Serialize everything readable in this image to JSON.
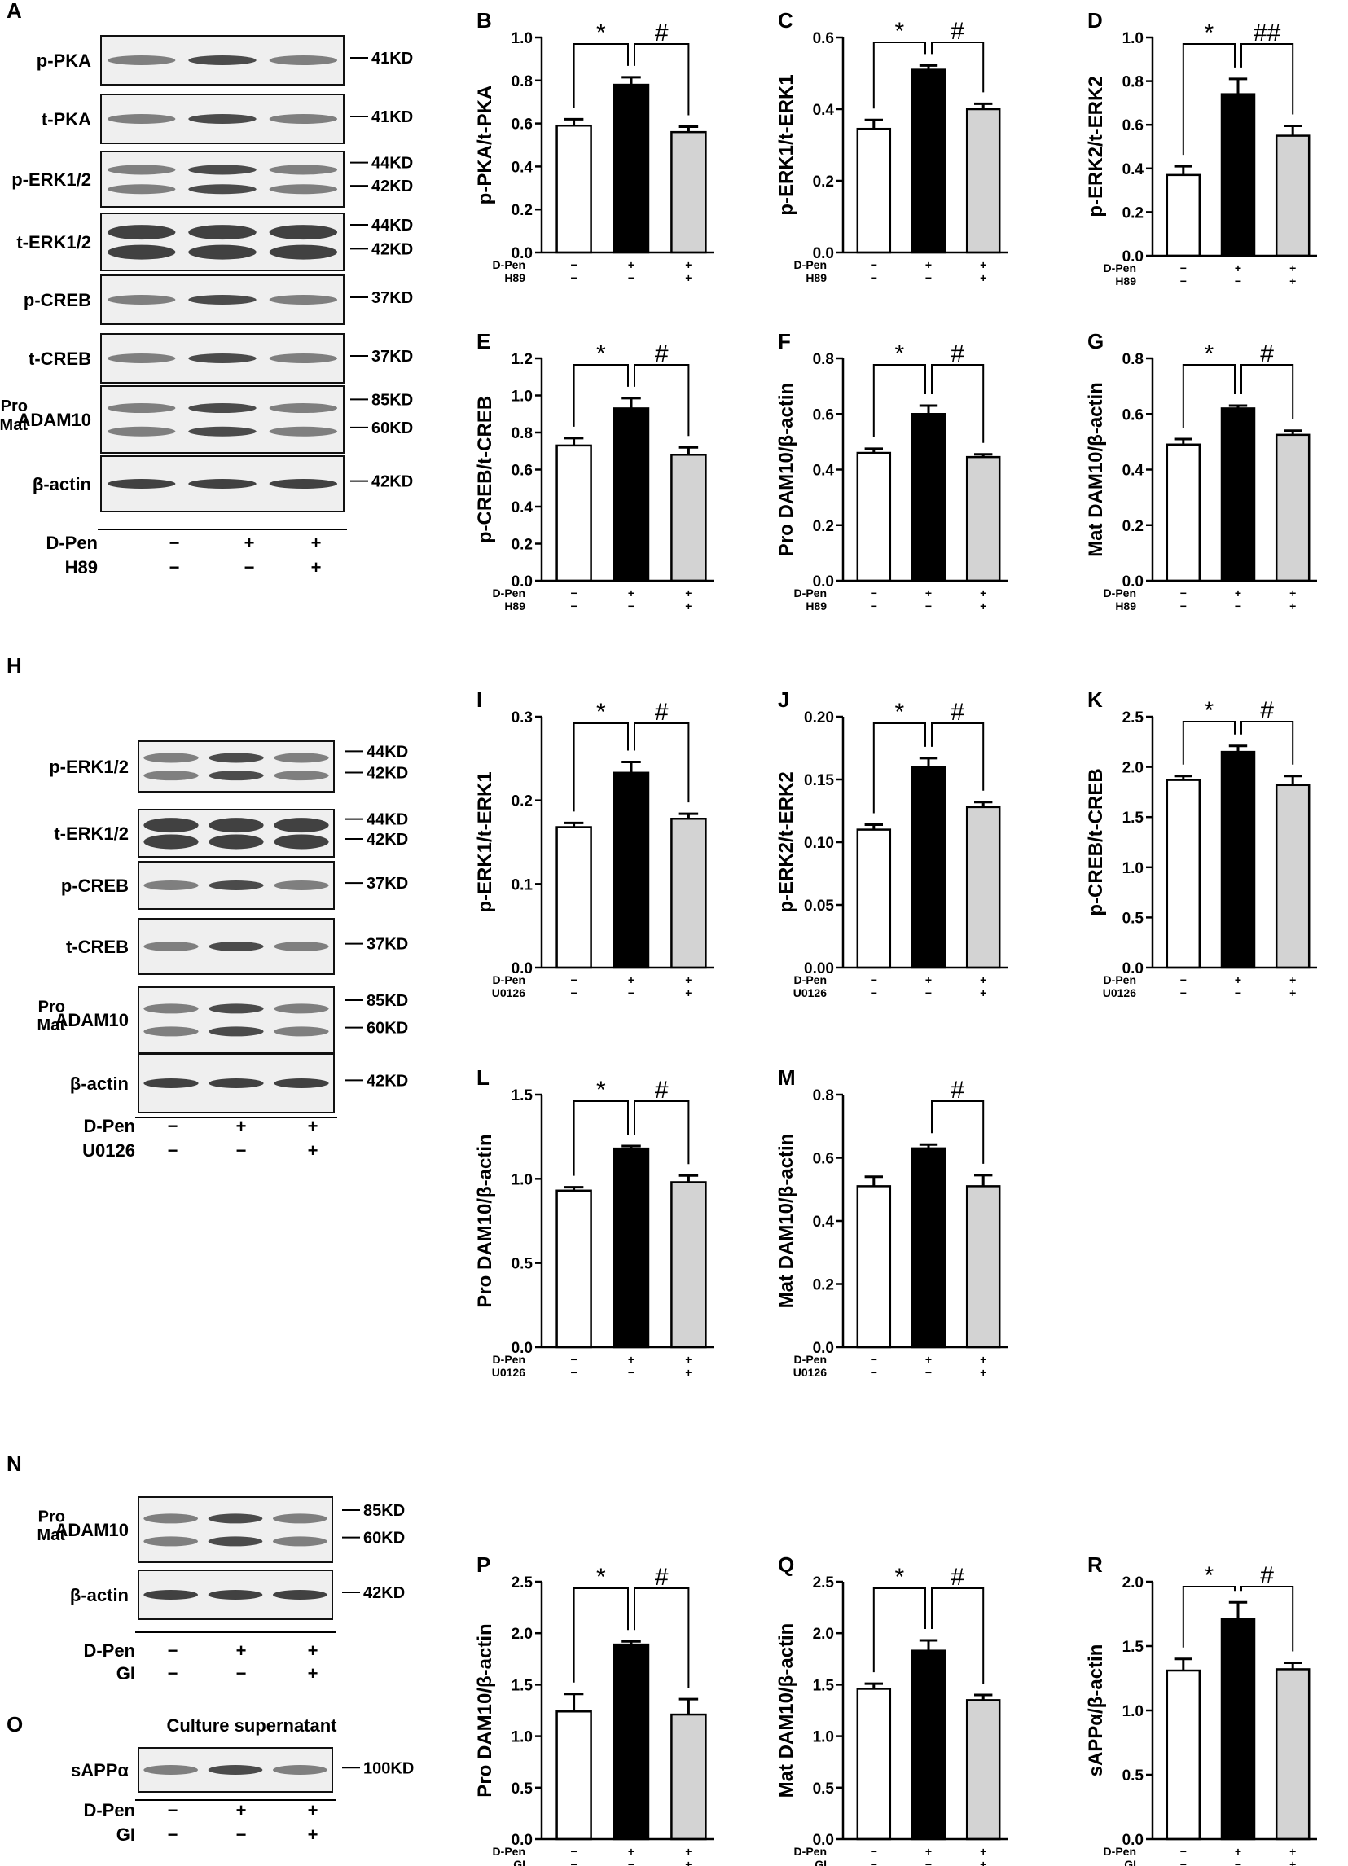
{
  "condition_labels": {
    "dpen": "D-Pen",
    "h89": "H89",
    "u0126": "U0126",
    "gi": "GI",
    "minus": "−",
    "plus": "+"
  },
  "blots": {
    "A": {
      "letter": "A",
      "rows": [
        {
          "name": "p-PKA",
          "kd": [
            "41KD"
          ]
        },
        {
          "name": "t-PKA",
          "kd": [
            "41KD"
          ]
        },
        {
          "name": "p-ERK1/2",
          "kd": [
            "44KD",
            "42KD"
          ]
        },
        {
          "name": "t-ERK1/2",
          "kd": [
            "44KD",
            "42KD"
          ]
        },
        {
          "name": "p-CREB",
          "kd": [
            "37KD"
          ]
        },
        {
          "name": "t-CREB",
          "kd": [
            "37KD"
          ]
        },
        {
          "name": "ADAM10",
          "prefix": [
            "Pro",
            "Mat"
          ],
          "kd": [
            "85KD",
            "60KD"
          ]
        },
        {
          "name": "β-actin",
          "kd": [
            "42KD"
          ]
        }
      ],
      "conditions": [
        {
          "label": "D-Pen",
          "signs": [
            "−",
            "+",
            "+"
          ]
        },
        {
          "label": "H89",
          "signs": [
            "−",
            "−",
            "+"
          ]
        }
      ]
    },
    "H": {
      "letter": "H",
      "rows": [
        {
          "name": "p-ERK1/2",
          "kd": [
            "44KD",
            "42KD"
          ]
        },
        {
          "name": "t-ERK1/2",
          "kd": [
            "44KD",
            "42KD"
          ]
        },
        {
          "name": "p-CREB",
          "kd": [
            "37KD"
          ]
        },
        {
          "name": "t-CREB",
          "kd": [
            "37KD"
          ]
        },
        {
          "name": "ADAM10",
          "prefix": [
            "Pro",
            "Mat"
          ],
          "kd": [
            "85KD",
            "60KD"
          ]
        },
        {
          "name": "β-actin",
          "kd": [
            "42KD"
          ]
        }
      ],
      "conditions": [
        {
          "label": "D-Pen",
          "signs": [
            "−",
            "+",
            "+"
          ]
        },
        {
          "label": "U0126",
          "signs": [
            "−",
            "−",
            "+"
          ]
        }
      ]
    },
    "N": {
      "letter": "N",
      "rows": [
        {
          "name": "ADAM10",
          "prefix": [
            "Pro",
            "Mat"
          ],
          "kd": [
            "85KD",
            "60KD"
          ]
        },
        {
          "name": "β-actin",
          "kd": [
            "42KD"
          ]
        }
      ],
      "conditions": [
        {
          "label": "D-Pen",
          "signs": [
            "−",
            "+",
            "+"
          ]
        },
        {
          "label": "GI",
          "signs": [
            "−",
            "−",
            "+"
          ]
        }
      ]
    },
    "O": {
      "letter": "O",
      "title": "Culture supernatant",
      "rows": [
        {
          "name": "sAPPα",
          "kd": [
            "100KD"
          ]
        }
      ],
      "conditions": [
        {
          "label": "D-Pen",
          "signs": [
            "−",
            "+",
            "+"
          ]
        },
        {
          "label": "GI",
          "signs": [
            "−",
            "−",
            "+"
          ]
        }
      ]
    }
  },
  "chart_data": [
    {
      "panel": "B",
      "type": "bar",
      "ylabel": "p-PKA/t-PKA",
      "ylim": [
        0,
        1.0
      ],
      "yticks": [
        "0.0",
        "0.2",
        "0.4",
        "0.6",
        "0.8",
        "1.0"
      ],
      "values": [
        0.59,
        0.78,
        0.56
      ],
      "errors": [
        0.03,
        0.035,
        0.025
      ],
      "colors": [
        "#ffffff",
        "#000000",
        "#d3d3d3"
      ],
      "sig1": "*",
      "sig2": "#",
      "inhibitor": "H89"
    },
    {
      "panel": "C",
      "type": "bar",
      "ylabel": "p-ERK1/t-ERK1",
      "ylim": [
        0,
        0.6
      ],
      "yticks": [
        "0.0",
        "0.2",
        "0.4",
        "0.6"
      ],
      "values": [
        0.345,
        0.51,
        0.4
      ],
      "errors": [
        0.025,
        0.012,
        0.015
      ],
      "colors": [
        "#ffffff",
        "#000000",
        "#d3d3d3"
      ],
      "sig1": "*",
      "sig2": "#",
      "inhibitor": "H89"
    },
    {
      "panel": "D",
      "type": "bar",
      "ylabel": "p-ERK2/t-ERK2",
      "ylim": [
        0,
        1.0
      ],
      "yticks": [
        "0.0",
        "0.2",
        "0.4",
        "0.6",
        "0.8",
        "1.0"
      ],
      "values": [
        0.37,
        0.74,
        0.55
      ],
      "errors": [
        0.04,
        0.07,
        0.045
      ],
      "colors": [
        "#ffffff",
        "#000000",
        "#d3d3d3"
      ],
      "sig1": "*",
      "sig2": "##",
      "inhibitor": "H89"
    },
    {
      "panel": "E",
      "type": "bar",
      "ylabel": "p-CREB/t-CREB",
      "ylim": [
        0,
        1.2
      ],
      "yticks": [
        "0.0",
        "0.2",
        "0.4",
        "0.6",
        "0.8",
        "1.0",
        "1.2"
      ],
      "values": [
        0.73,
        0.93,
        0.68
      ],
      "errors": [
        0.04,
        0.055,
        0.04
      ],
      "colors": [
        "#ffffff",
        "#000000",
        "#d3d3d3"
      ],
      "sig1": "*",
      "sig2": "#",
      "inhibitor": "H89"
    },
    {
      "panel": "F",
      "type": "bar",
      "ylabel": "Pro DAM10/β-actin",
      "ylim": [
        0,
        0.8
      ],
      "yticks": [
        "0.0",
        "0.2",
        "0.4",
        "0.6",
        "0.8"
      ],
      "values": [
        0.46,
        0.6,
        0.445
      ],
      "errors": [
        0.015,
        0.03,
        0.01
      ],
      "colors": [
        "#ffffff",
        "#000000",
        "#d3d3d3"
      ],
      "sig1": "*",
      "sig2": "#",
      "inhibitor": "H89"
    },
    {
      "panel": "G",
      "type": "bar",
      "ylabel": "Mat DAM10/β-actin",
      "ylim": [
        0,
        0.8
      ],
      "yticks": [
        "0.0",
        "0.2",
        "0.4",
        "0.6",
        "0.8"
      ],
      "values": [
        0.49,
        0.62,
        0.525
      ],
      "errors": [
        0.02,
        0.01,
        0.015
      ],
      "colors": [
        "#ffffff",
        "#000000",
        "#d3d3d3"
      ],
      "sig1": "*",
      "sig2": "#",
      "inhibitor": "H89"
    },
    {
      "panel": "I",
      "type": "bar",
      "ylabel": "p-ERK1/t-ERK1",
      "ylim": [
        0,
        0.3
      ],
      "yticks": [
        "0.0",
        "0.1",
        "0.2",
        "0.3"
      ],
      "values": [
        0.168,
        0.233,
        0.178
      ],
      "errors": [
        0.005,
        0.013,
        0.006
      ],
      "colors": [
        "#ffffff",
        "#000000",
        "#d3d3d3"
      ],
      "sig1": "*",
      "sig2": "#",
      "inhibitor": "U0126"
    },
    {
      "panel": "J",
      "type": "bar",
      "ylabel": "p-ERK2/t-ERK2",
      "ylim": [
        0,
        0.2
      ],
      "yticks": [
        "0.00",
        "0.05",
        "0.10",
        "0.15",
        "0.20"
      ],
      "values": [
        0.11,
        0.16,
        0.128
      ],
      "errors": [
        0.004,
        0.007,
        0.004
      ],
      "colors": [
        "#ffffff",
        "#000000",
        "#d3d3d3"
      ],
      "sig1": "*",
      "sig2": "#",
      "inhibitor": "U0126"
    },
    {
      "panel": "K",
      "type": "bar",
      "ylabel": "p-CREB/t-CREB",
      "ylim": [
        0,
        2.5
      ],
      "yticks": [
        "0.0",
        "0.5",
        "1.0",
        "1.5",
        "2.0",
        "2.5"
      ],
      "values": [
        1.87,
        2.15,
        1.82
      ],
      "errors": [
        0.04,
        0.06,
        0.09
      ],
      "colors": [
        "#ffffff",
        "#000000",
        "#d3d3d3"
      ],
      "sig1": "*",
      "sig2": "#",
      "inhibitor": "U0126"
    },
    {
      "panel": "L",
      "type": "bar",
      "ylabel": "Pro DAM10/β-actin",
      "ylim": [
        0,
        1.5
      ],
      "yticks": [
        "0.0",
        "0.5",
        "1.0",
        "1.5"
      ],
      "values": [
        0.93,
        1.18,
        0.98
      ],
      "errors": [
        0.02,
        0.015,
        0.04
      ],
      "colors": [
        "#ffffff",
        "#000000",
        "#d3d3d3"
      ],
      "sig1": "*",
      "sig2": "#",
      "inhibitor": "U0126"
    },
    {
      "panel": "M",
      "type": "bar",
      "ylabel": "Mat DAM10/β-actin",
      "ylim": [
        0,
        0.8
      ],
      "yticks": [
        "0.0",
        "0.2",
        "0.4",
        "0.6",
        "0.8"
      ],
      "values": [
        0.51,
        0.63,
        0.51
      ],
      "errors": [
        0.03,
        0.012,
        0.035
      ],
      "colors": [
        "#ffffff",
        "#000000",
        "#d3d3d3"
      ],
      "sig1": "",
      "sig2": "#",
      "inhibitor": "U0126"
    },
    {
      "panel": "P",
      "type": "bar",
      "ylabel": "Pro DAM10/β-actin",
      "ylim": [
        0,
        2.5
      ],
      "yticks": [
        "0.0",
        "0.5",
        "1.0",
        "1.5",
        "2.0",
        "2.5"
      ],
      "values": [
        1.24,
        1.89,
        1.21
      ],
      "errors": [
        0.17,
        0.03,
        0.15
      ],
      "colors": [
        "#ffffff",
        "#000000",
        "#d3d3d3"
      ],
      "sig1": "*",
      "sig2": "#",
      "inhibitor": "GI"
    },
    {
      "panel": "Q",
      "type": "bar",
      "ylabel": "Mat DAM10/β-actin",
      "ylim": [
        0,
        2.5
      ],
      "yticks": [
        "0.0",
        "0.5",
        "1.0",
        "1.5",
        "2.0",
        "2.5"
      ],
      "values": [
        1.46,
        1.83,
        1.35
      ],
      "errors": [
        0.05,
        0.1,
        0.05
      ],
      "colors": [
        "#ffffff",
        "#000000",
        "#d3d3d3"
      ],
      "sig1": "*",
      "sig2": "#",
      "inhibitor": "GI"
    },
    {
      "panel": "R",
      "type": "bar",
      "ylabel": "sAPPα/β-actin",
      "ylim": [
        0,
        2.0
      ],
      "yticks": [
        "0.0",
        "0.5",
        "1.0",
        "1.5",
        "2.0"
      ],
      "values": [
        1.31,
        1.71,
        1.32
      ],
      "errors": [
        0.09,
        0.13,
        0.05
      ],
      "colors": [
        "#ffffff",
        "#000000",
        "#d3d3d3"
      ],
      "sig1": "*",
      "sig2": "#",
      "inhibitor": "GI"
    }
  ]
}
